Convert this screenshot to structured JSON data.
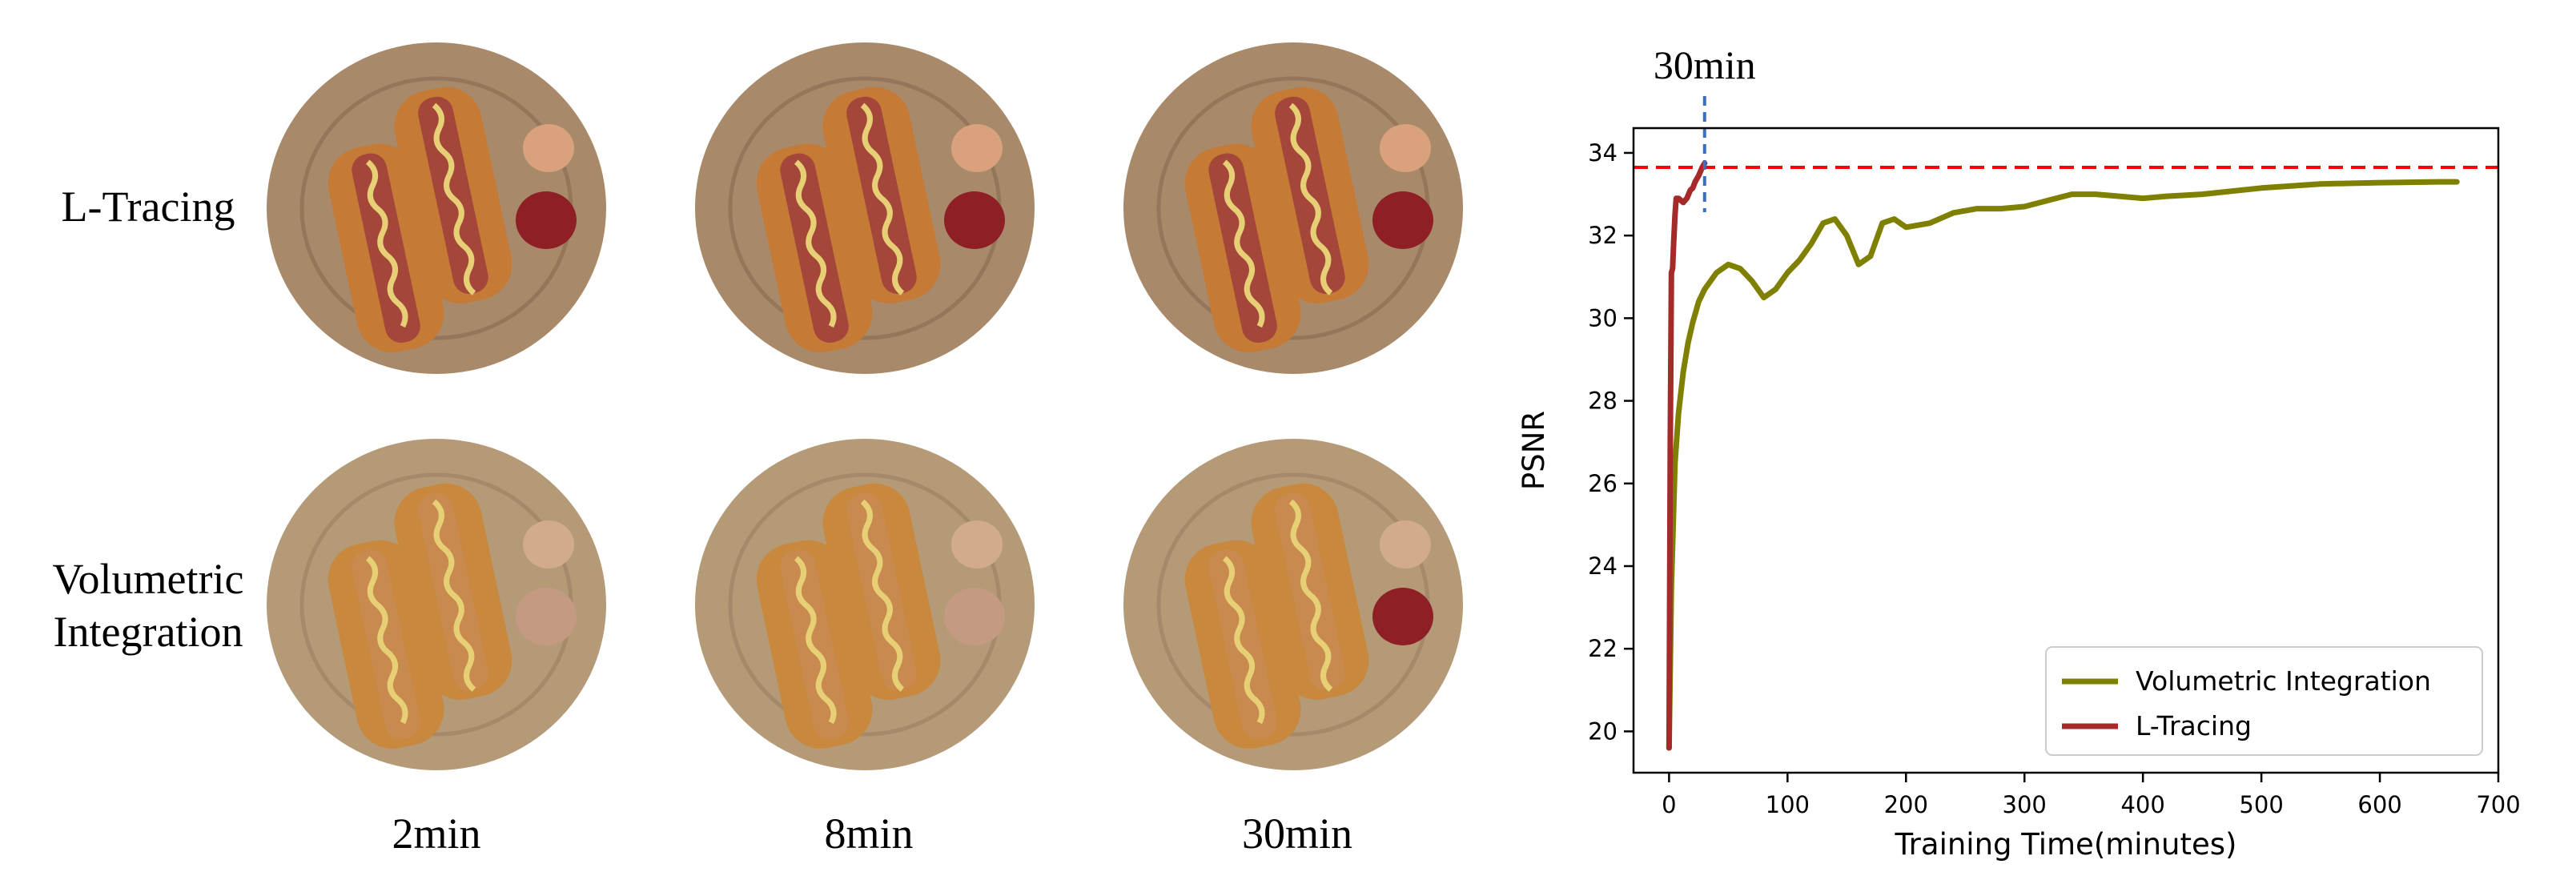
{
  "figure": {
    "rows": [
      {
        "label_lines": [
          "L-Tracing"
        ]
      },
      {
        "label_lines": [
          "Volumetric",
          "Integration"
        ]
      }
    ],
    "columns": [
      "2min",
      "8min",
      "30min"
    ],
    "plates": [
      {
        "row": "L-Tracing",
        "time": "2min",
        "ketchup": true
      },
      {
        "row": "L-Tracing",
        "time": "8min",
        "ketchup": true
      },
      {
        "row": "L-Tracing",
        "time": "30min",
        "ketchup": true
      },
      {
        "row": "Volumetric Integration",
        "time": "2min",
        "ketchup": false
      },
      {
        "row": "Volumetric Integration",
        "time": "8min",
        "ketchup": false
      },
      {
        "row": "Volumetric Integration",
        "time": "30min",
        "ketchup": true
      }
    ]
  },
  "chart_data": {
    "type": "line",
    "xlabel": "Training Time(minutes)",
    "ylabel": "PSNR",
    "xlim": [
      -30,
      700
    ],
    "ylim": [
      19,
      34.6
    ],
    "xticks": [
      0,
      100,
      200,
      300,
      400,
      500,
      600,
      700
    ],
    "yticks": [
      20,
      22,
      24,
      26,
      28,
      30,
      32,
      34
    ],
    "grid": false,
    "legend_position": "lower-right",
    "annotation": {
      "text": "30min",
      "x": 30
    },
    "reference_line": {
      "y": 33.65,
      "style": "dashed",
      "color": "#ff0000"
    },
    "series": [
      {
        "name": "Volumetric Integration",
        "color": "#808000",
        "x": [
          0,
          2,
          5,
          8,
          12,
          16,
          20,
          25,
          30,
          40,
          50,
          60,
          70,
          80,
          90,
          100,
          110,
          120,
          130,
          140,
          150,
          160,
          170,
          180,
          190,
          200,
          220,
          240,
          260,
          280,
          300,
          320,
          340,
          360,
          380,
          400,
          420,
          450,
          500,
          550,
          600,
          650,
          665
        ],
        "y": [
          19.6,
          23.5,
          26.5,
          27.7,
          28.7,
          29.4,
          29.9,
          30.4,
          30.7,
          31.1,
          31.3,
          31.2,
          30.9,
          30.5,
          30.7,
          31.1,
          31.4,
          31.8,
          32.3,
          32.4,
          32.0,
          31.3,
          31.5,
          32.3,
          32.4,
          32.2,
          32.3,
          32.55,
          32.65,
          32.65,
          32.7,
          32.85,
          33.0,
          33.0,
          32.95,
          32.9,
          32.95,
          33.0,
          33.15,
          33.25,
          33.28,
          33.3,
          33.3
        ]
      },
      {
        "name": "L-Tracing",
        "color": "#a52a2a",
        "x": [
          0,
          1,
          2,
          3,
          4,
          5,
          6,
          7,
          8,
          10,
          12,
          15,
          18,
          20,
          22,
          25,
          28,
          30
        ],
        "y": [
          19.6,
          27.0,
          31.1,
          31.2,
          31.9,
          32.5,
          32.9,
          32.9,
          32.9,
          32.85,
          32.8,
          32.9,
          33.1,
          33.15,
          33.3,
          33.45,
          33.65,
          33.75
        ]
      }
    ]
  }
}
